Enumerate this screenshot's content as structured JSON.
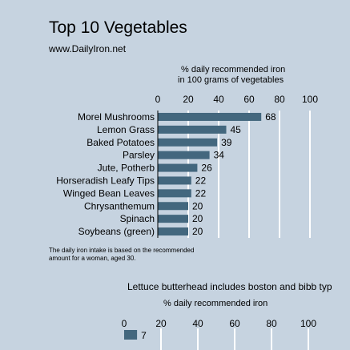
{
  "header": {
    "title": "Top 10 Vegetables",
    "subtitle": "www.DailyIron.net"
  },
  "colors": {
    "background": "#c6d3e0",
    "bar": "#43677e",
    "gridline": "#ffffff"
  },
  "chart_data": [
    {
      "type": "bar",
      "orientation": "horizontal",
      "title": "",
      "xlabel": "",
      "ylabel_lines": [
        "% daily recommended iron",
        "in 100 grams of vegetables"
      ],
      "categories": [
        "Morel Mushrooms",
        "Lemon Grass",
        "Baked Potatoes",
        "Parsley",
        "Jute, Potherb",
        "Horseradish Leafy Tips",
        "Winged Bean Leaves",
        "Chrysanthemum",
        "Spinach",
        "Soybeans (green)"
      ],
      "values": [
        68,
        45,
        39,
        34,
        26,
        22,
        22,
        20,
        20,
        20
      ],
      "ticks": [
        0,
        20,
        40,
        60,
        80,
        100
      ],
      "ylim": [
        0,
        100
      ],
      "grid": true,
      "footnote_lines": [
        "The daily iron intake is based on the recommended",
        "amount for a woman, aged 30."
      ]
    },
    {
      "type": "bar",
      "orientation": "horizontal",
      "title": "Lettuce butterhead includes boston and bibb typ",
      "ylabel": "% daily recommended iron",
      "categories": [
        ""
      ],
      "values": [
        7
      ],
      "ticks": [
        0,
        20,
        40,
        60,
        80,
        100
      ],
      "ylim": [
        0,
        100
      ],
      "grid": true
    }
  ]
}
